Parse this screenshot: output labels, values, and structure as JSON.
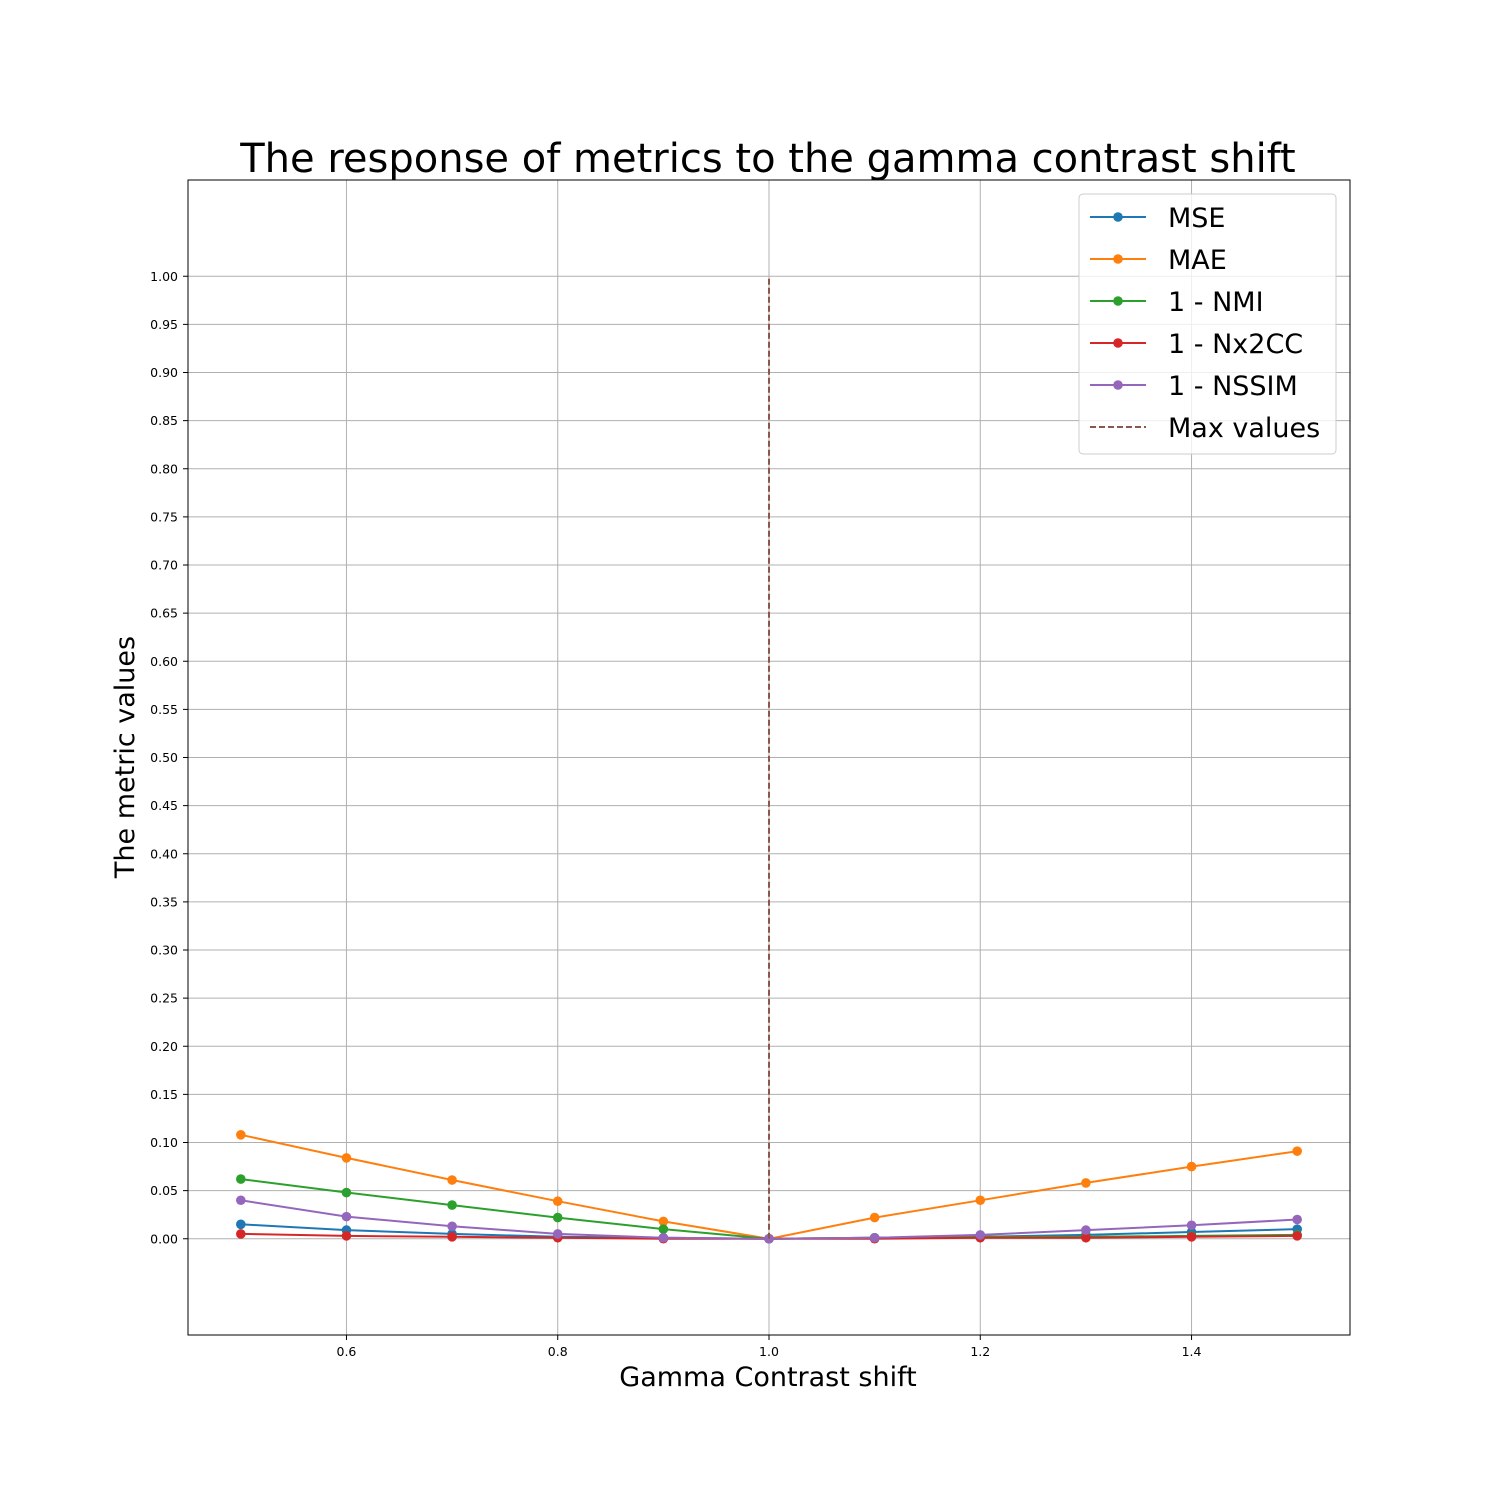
{
  "chart_data": {
    "type": "line",
    "title": "The response of metrics to the gamma contrast shift",
    "xlabel": "Gamma Contrast shift",
    "ylabel": "The metric values",
    "xlim": [
      0.45,
      1.55
    ],
    "ylim": [
      -0.1,
      1.1
    ],
    "xticks": [
      0.6,
      0.8,
      1.0,
      1.2,
      1.4
    ],
    "xtick_labels": [
      "0.6",
      "0.8",
      "1.0",
      "1.2",
      "1.4"
    ],
    "yticks": [
      0,
      0.05,
      0.1,
      0.15,
      0.2,
      0.25,
      0.3,
      0.35,
      0.4,
      0.45,
      0.5,
      0.55,
      0.6,
      0.65,
      0.7,
      0.75,
      0.8,
      0.85,
      0.9,
      0.95,
      1.0
    ],
    "ytick_labels": [
      "0.00",
      "0.05",
      "0.10",
      "0.15",
      "0.20",
      "0.25",
      "0.30",
      "0.35",
      "0.40",
      "0.45",
      "0.50",
      "0.55",
      "0.60",
      "0.65",
      "0.70",
      "0.75",
      "0.80",
      "0.85",
      "0.90",
      "0.95",
      "1.00"
    ],
    "grid": true,
    "legend": "top-right",
    "x": [
      0.5,
      0.6,
      0.7,
      0.8,
      0.9,
      1.0,
      1.1,
      1.2,
      1.3,
      1.4,
      1.5
    ],
    "series": [
      {
        "name": "MSE",
        "color": "#1f77b4",
        "values": [
          0.015,
          0.009,
          0.005,
          0.002,
          0.001,
          0.0,
          0.001,
          0.002,
          0.004,
          0.007,
          0.01
        ]
      },
      {
        "name": "MAE",
        "color": "#ff7f0e",
        "values": [
          0.108,
          0.084,
          0.061,
          0.039,
          0.018,
          0.0,
          0.022,
          0.04,
          0.058,
          0.075,
          0.091
        ]
      },
      {
        "name": "1 - NMI",
        "color": "#2ca02c",
        "values": [
          0.062,
          0.048,
          0.035,
          0.022,
          0.01,
          0.0,
          0.001,
          0.002,
          0.002,
          0.003,
          0.004
        ]
      },
      {
        "name": "1 - Nx2CC",
        "color": "#d62728",
        "values": [
          0.005,
          0.003,
          0.002,
          0.001,
          0.0,
          0.0,
          0.0,
          0.001,
          0.001,
          0.002,
          0.003
        ]
      },
      {
        "name": "1 - NSSIM",
        "color": "#9467bd",
        "values": [
          0.04,
          0.023,
          0.013,
          0.005,
          0.001,
          0.0,
          0.001,
          0.004,
          0.009,
          0.014,
          0.02
        ]
      }
    ],
    "max_values_line": {
      "name": "Max values",
      "color": "#8c564b",
      "x": 1.0,
      "y_range": [
        0.0,
        1.0
      ],
      "style": "dashed"
    }
  }
}
